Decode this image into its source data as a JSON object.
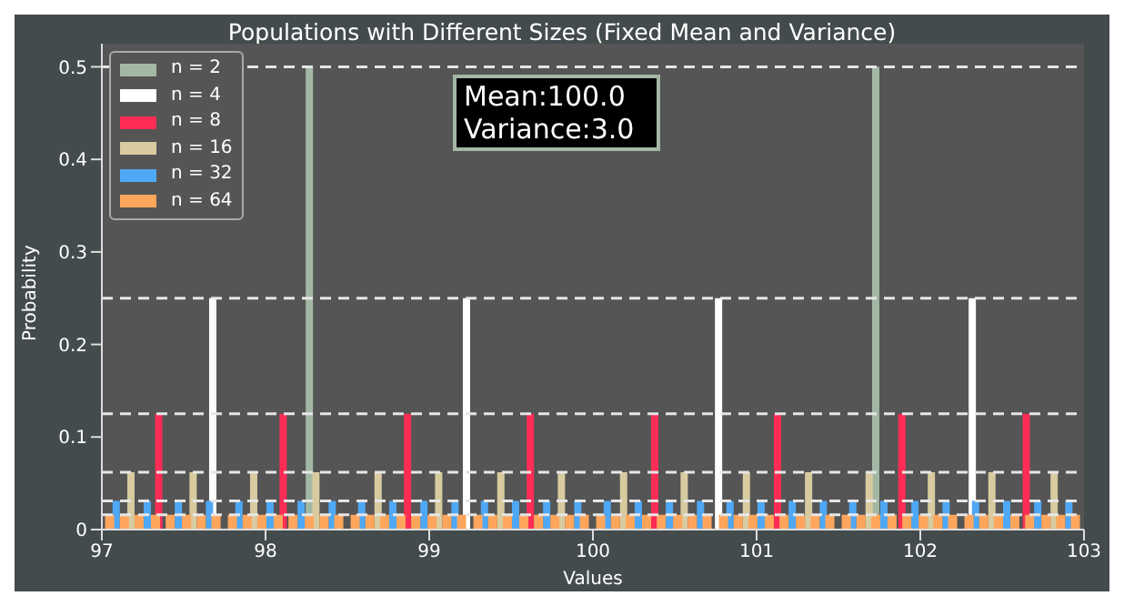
{
  "chart_data": {
    "type": "bar",
    "title": "Populations with Different Sizes (Fixed Mean and Variance)",
    "xlabel": "Values",
    "ylabel": "Probability",
    "xlim": [
      97,
      103
    ],
    "xticks": [
      97,
      98,
      99,
      100,
      101,
      102,
      103
    ],
    "ylim": [
      0,
      0.525
    ],
    "yticks": [
      0,
      0.1,
      0.2,
      0.3,
      0.4,
      0.5
    ],
    "legend": "top left",
    "grid": false,
    "annotations": [
      "Mean:100.0",
      "Variance:3.0"
    ],
    "ref_lines": [
      {
        "axis": "y",
        "value": 0.5,
        "color": "#e6e6e6",
        "line_style": "dashed"
      },
      {
        "axis": "y",
        "value": 0.25,
        "color": "#e6e6e6",
        "line_style": "dashed"
      },
      {
        "axis": "y",
        "value": 0.125,
        "color": "#e6e6e6",
        "line_style": "dashed"
      },
      {
        "axis": "y",
        "value": 0.062,
        "color": "#e6e6e6",
        "line_style": "dashed"
      },
      {
        "axis": "y",
        "value": 0.031,
        "color": "#e6e6e6",
        "line_style": "dashed"
      },
      {
        "axis": "y",
        "value": 0.016,
        "color": "#e6e6e6",
        "line_style": "dashed"
      }
    ],
    "series": [
      {
        "name": "n = 2",
        "color": "#a3b8a4",
        "x": [
          98.27,
          101.73
        ],
        "values": [
          0.5,
          0.5
        ]
      },
      {
        "name": "n = 4",
        "color": "#ffffff",
        "x": [
          97.68,
          99.23,
          100.77,
          102.32
        ],
        "values": [
          0.25,
          0.25,
          0.25,
          0.25
        ]
      },
      {
        "name": "n = 8",
        "color": "#ff2d55",
        "x": [
          97.35,
          98.11,
          98.87,
          99.62,
          100.38,
          101.13,
          101.89,
          102.65
        ],
        "values": [
          0.125,
          0.125,
          0.125,
          0.125,
          0.125,
          0.125,
          0.125,
          0.125
        ]
      },
      {
        "name": "n = 16",
        "color": "#d8cba0",
        "x": [
          97.18,
          97.56,
          97.93,
          98.31,
          98.69,
          99.06,
          99.44,
          99.81,
          100.19,
          100.56,
          100.94,
          101.32,
          101.69,
          102.07,
          102.44,
          102.82
        ],
        "values": [
          0.062,
          0.062,
          0.062,
          0.062,
          0.062,
          0.062,
          0.062,
          0.062,
          0.062,
          0.062,
          0.062,
          0.062,
          0.062,
          0.062,
          0.062,
          0.062
        ]
      },
      {
        "name": "n = 32",
        "color": "#4fa8f5",
        "x": [
          97.09,
          97.28,
          97.47,
          97.66,
          97.84,
          98.03,
          98.22,
          98.41,
          98.59,
          98.78,
          98.97,
          99.16,
          99.34,
          99.53,
          99.72,
          99.91,
          100.09,
          100.28,
          100.47,
          100.66,
          100.84,
          101.03,
          101.22,
          101.41,
          101.59,
          101.78,
          101.97,
          102.16,
          102.34,
          102.53,
          102.72,
          102.91
        ],
        "values": [
          0.031,
          0.031,
          0.031,
          0.031,
          0.031,
          0.031,
          0.031,
          0.031,
          0.031,
          0.031,
          0.031,
          0.031,
          0.031,
          0.031,
          0.031,
          0.031,
          0.031,
          0.031,
          0.031,
          0.031,
          0.031,
          0.031,
          0.031,
          0.031,
          0.031,
          0.031,
          0.031,
          0.031,
          0.031,
          0.031,
          0.031,
          0.031
        ]
      },
      {
        "name": "n = 64",
        "color": "#ffa65c",
        "x": [
          97.05,
          97.14,
          97.23,
          97.33,
          97.42,
          97.52,
          97.61,
          97.7,
          97.8,
          97.89,
          97.98,
          98.08,
          98.17,
          98.27,
          98.36,
          98.45,
          98.55,
          98.64,
          98.73,
          98.83,
          98.92,
          99.02,
          99.11,
          99.2,
          99.3,
          99.39,
          99.48,
          99.58,
          99.67,
          99.77,
          99.86,
          99.95,
          100.05,
          100.14,
          100.23,
          100.33,
          100.42,
          100.52,
          100.61,
          100.7,
          100.8,
          100.89,
          100.98,
          101.08,
          101.17,
          101.27,
          101.36,
          101.45,
          101.55,
          101.64,
          101.73,
          101.83,
          101.92,
          102.02,
          102.11,
          102.2,
          102.3,
          102.39,
          102.48,
          102.58,
          102.67,
          102.77,
          102.86,
          102.95
        ],
        "values": [
          0.016,
          0.016,
          0.016,
          0.016,
          0.016,
          0.016,
          0.016,
          0.016,
          0.016,
          0.016,
          0.016,
          0.016,
          0.016,
          0.016,
          0.016,
          0.016,
          0.016,
          0.016,
          0.016,
          0.016,
          0.016,
          0.016,
          0.016,
          0.016,
          0.016,
          0.016,
          0.016,
          0.016,
          0.016,
          0.016,
          0.016,
          0.016,
          0.016,
          0.016,
          0.016,
          0.016,
          0.016,
          0.016,
          0.016,
          0.016,
          0.016,
          0.016,
          0.016,
          0.016,
          0.016,
          0.016,
          0.016,
          0.016,
          0.016,
          0.016,
          0.016,
          0.016,
          0.016,
          0.016,
          0.016,
          0.016,
          0.016,
          0.016,
          0.016,
          0.016,
          0.016,
          0.016,
          0.016,
          0.016
        ]
      }
    ]
  }
}
